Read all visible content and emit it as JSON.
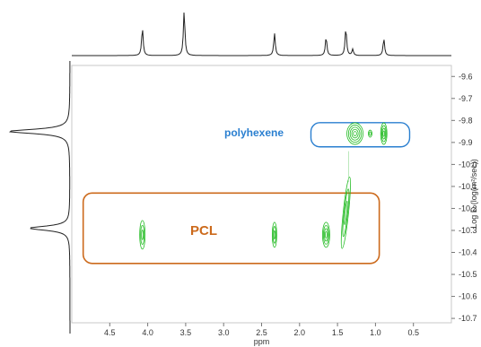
{
  "chart_data": {
    "type": "scatter",
    "title": "",
    "xlabel": "ppm",
    "ylabel": "Log D (log(m²/sec))",
    "xlim": [
      5.0,
      0.0
    ],
    "ylim": [
      -9.55,
      -10.72
    ],
    "x_ticks": [
      "4.5",
      "4.0",
      "3.5",
      "3.0",
      "2.5",
      "2.0",
      "1.5",
      "1.0",
      "0.5"
    ],
    "y_ticks": [
      "-9.6",
      "-9.7",
      "-9.8",
      "-9.9",
      "-10.0",
      "-10.1",
      "-10.2",
      "-10.3",
      "-10.4",
      "-10.5",
      "-10.6",
      "-10.7"
    ],
    "grid": false,
    "series": [
      {
        "name": "PCL",
        "color": "#22bb22",
        "points": [
          {
            "ppm": 4.07,
            "logD": -10.32
          },
          {
            "ppm": 2.33,
            "logD": -10.32
          },
          {
            "ppm": 1.65,
            "logD": -10.32
          },
          {
            "ppm": 1.39,
            "logD": -10.22
          }
        ]
      },
      {
        "name": "polyhexene",
        "color": "#22bb22",
        "points": [
          {
            "ppm": 1.27,
            "logD": -9.86
          },
          {
            "ppm": 0.89,
            "logD": -9.86
          }
        ]
      }
    ],
    "annotations": [
      {
        "text": "polyhexene",
        "color": "#2a7fd0",
        "x_range": [
          1.85,
          0.55
        ],
        "y_range": [
          -9.81,
          -9.92
        ]
      },
      {
        "text": "PCL",
        "color": "#cc6a1c",
        "x_range": [
          4.85,
          0.95
        ],
        "y_range": [
          -10.13,
          -10.45
        ]
      }
    ],
    "projection_1h_peaks": [
      {
        "ppm": 4.07,
        "height": 0.62
      },
      {
        "ppm": 3.52,
        "height": 1.0
      },
      {
        "ppm": 2.33,
        "height": 0.5
      },
      {
        "ppm": 1.65,
        "height": 0.42
      },
      {
        "ppm": 1.39,
        "height": 0.62
      },
      {
        "ppm": 1.3,
        "height": 0.14
      },
      {
        "ppm": 0.89,
        "height": 0.38
      }
    ],
    "projection_diffusion_peaks": [
      {
        "logD": -9.85,
        "height": 1.0
      },
      {
        "logD": -10.29,
        "height": 0.66
      }
    ]
  }
}
